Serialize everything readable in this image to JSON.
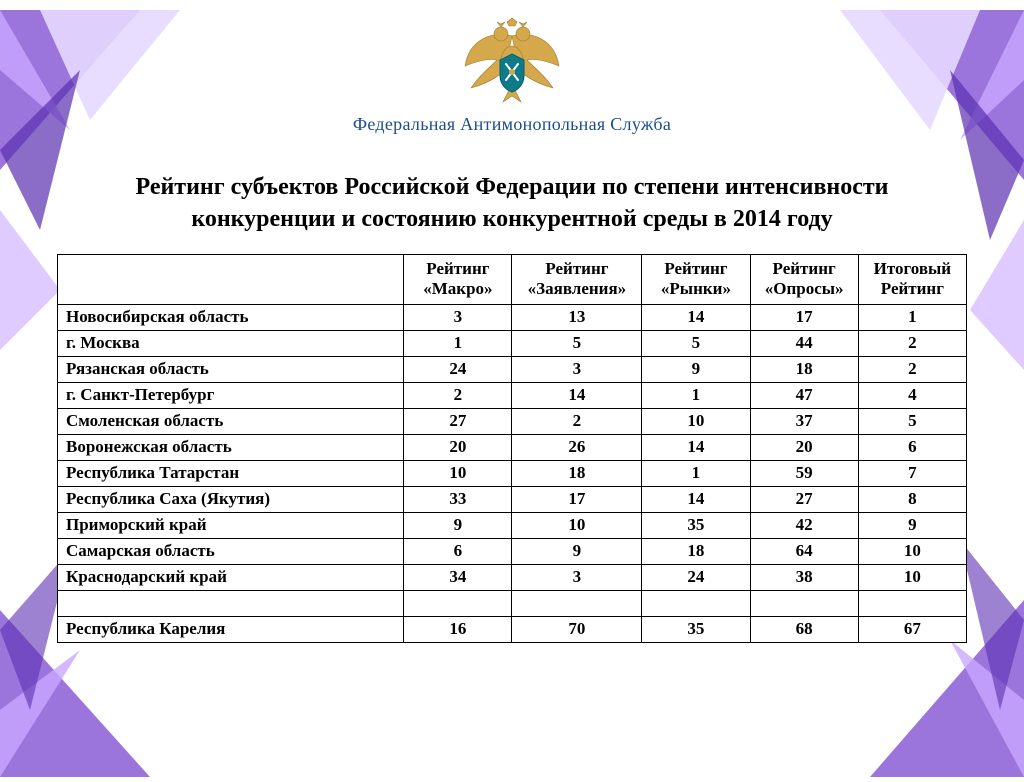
{
  "header": {
    "org_name": "Федеральная Антимонопольная Служба",
    "emblem_colors": {
      "gold": "#d4a84b",
      "dark_gold": "#9c7a2e",
      "teal": "#0e7b8a",
      "shield_border": "#0a5d6b"
    }
  },
  "title": "Рейтинг субъектов Российской Федерации по степени интенсивности конкуренции и состоянию конкурентной среды в 2014 году",
  "table": {
    "columns": [
      "",
      "Рейтинг «Макро»",
      "Рейтинг «Заявления»",
      "Рейтинг «Рынки»",
      "Рейтинг «Опросы»",
      "Итоговый Рейтинг"
    ],
    "rows": [
      [
        "Новосибирская область",
        "3",
        "13",
        "14",
        "17",
        "1"
      ],
      [
        "г. Москва",
        "1",
        "5",
        "5",
        "44",
        "2"
      ],
      [
        "Рязанская область",
        "24",
        "3",
        "9",
        "18",
        "2"
      ],
      [
        "г. Санкт-Петербург",
        "2",
        "14",
        "1",
        "47",
        "4"
      ],
      [
        "Смоленская область",
        "27",
        "2",
        "10",
        "37",
        "5"
      ],
      [
        "Воронежская область",
        "20",
        "26",
        "14",
        "20",
        "6"
      ],
      [
        "Республика Татарстан",
        "10",
        "18",
        "1",
        "59",
        "7"
      ],
      [
        "Республика Саха (Якутия)",
        "33",
        "17",
        "14",
        "27",
        "8"
      ],
      [
        "Приморский край",
        "9",
        "10",
        "35",
        "42",
        "9"
      ],
      [
        "Самарская область",
        "6",
        "9",
        "18",
        "64",
        "10"
      ],
      [
        "Краснодарский край",
        "34",
        "3",
        "24",
        "38",
        "10"
      ],
      [
        "",
        "",
        "",
        "",
        "",
        ""
      ],
      [
        "Республика Карелия",
        "16",
        "70",
        "35",
        "68",
        "67"
      ]
    ]
  },
  "decor": {
    "colors": {
      "violet_light": "#c9a8ff",
      "violet": "#8a5dd6",
      "violet_deep": "#5a2fb0",
      "violet_pale": "#e6d9ff",
      "white": "#ffffff"
    }
  }
}
